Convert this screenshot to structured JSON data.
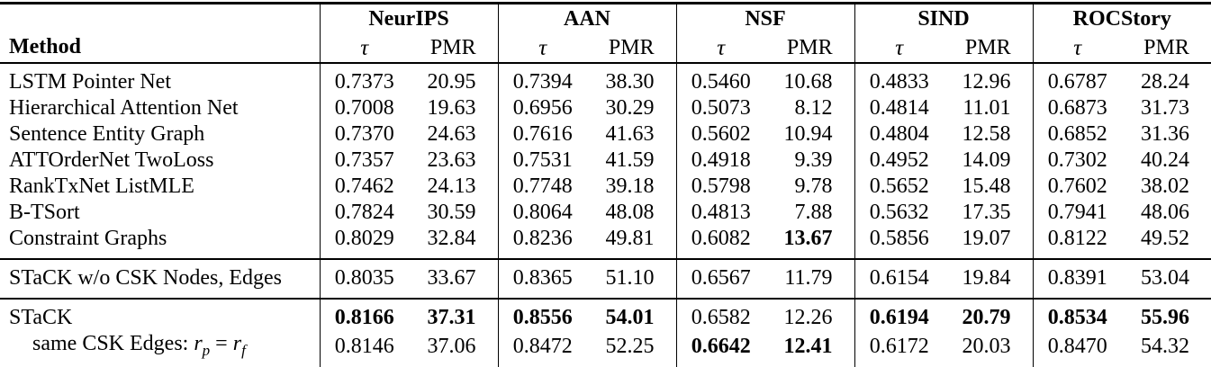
{
  "table": {
    "method_header": "Method",
    "datasets": [
      "NeurIPS",
      "AAN",
      "NSF",
      "SIND",
      "ROCStory"
    ],
    "subheaders": {
      "tau": "τ",
      "pmr": "PMR"
    },
    "sections": [
      {
        "name": "baselines",
        "rows": [
          {
            "method": "LSTM Pointer Net",
            "values": [
              "0.7373",
              "20.95",
              "0.7394",
              "38.30",
              "0.5460",
              "10.68",
              "0.4833",
              "12.96",
              "0.6787",
              "28.24"
            ],
            "bold": []
          },
          {
            "method": "Hierarchical Attention Net",
            "values": [
              "0.7008",
              "19.63",
              "0.6956",
              "30.29",
              "0.5073",
              "8.12",
              "0.4814",
              "11.01",
              "0.6873",
              "31.73"
            ],
            "bold": []
          },
          {
            "method": "Sentence Entity Graph",
            "values": [
              "0.7370",
              "24.63",
              "0.7616",
              "41.63",
              "0.5602",
              "10.94",
              "0.4804",
              "12.58",
              "0.6852",
              "31.36"
            ],
            "bold": []
          },
          {
            "method": "ATTOrderNet TwoLoss",
            "values": [
              "0.7357",
              "23.63",
              "0.7531",
              "41.59",
              "0.4918",
              "9.39",
              "0.4952",
              "14.09",
              "0.7302",
              "40.24"
            ],
            "bold": []
          },
          {
            "method": "RankTxNet ListMLE",
            "values": [
              "0.7462",
              "24.13",
              "0.7748",
              "39.18",
              "0.5798",
              "9.78",
              "0.5652",
              "15.48",
              "0.7602",
              "38.02"
            ],
            "bold": []
          },
          {
            "method": "B-TSort",
            "values": [
              "0.7824",
              "30.59",
              "0.8064",
              "48.08",
              "0.4813",
              "7.88",
              "0.5632",
              "17.35",
              "0.7941",
              "48.06"
            ],
            "bold": []
          },
          {
            "method": "Constraint Graphs",
            "values": [
              "0.8029",
              "32.84",
              "0.8236",
              "49.81",
              "0.6082",
              "13.67",
              "0.5856",
              "19.07",
              "0.8122",
              "49.52"
            ],
            "bold": [
              5
            ]
          }
        ]
      },
      {
        "name": "ablation",
        "rows": [
          {
            "method": "STaCK w/o CSK Nodes, Edges",
            "values": [
              "0.8035",
              "33.67",
              "0.8365",
              "51.10",
              "0.6567",
              "11.79",
              "0.6154",
              "19.84",
              "0.8391",
              "53.04"
            ],
            "bold": []
          }
        ]
      },
      {
        "name": "stack",
        "rows": [
          {
            "method": "STaCK",
            "values": [
              "0.8166",
              "37.31",
              "0.8556",
              "54.01",
              "0.6582",
              "12.26",
              "0.6194",
              "20.79",
              "0.8534",
              "55.96"
            ],
            "bold": [
              0,
              1,
              2,
              3,
              6,
              7,
              8,
              9
            ]
          },
          {
            "method": "same CSK Edges: r_p = r_f",
            "math": true,
            "indent": true,
            "values": [
              "0.8146",
              "37.06",
              "0.8472",
              "52.25",
              "0.6642",
              "12.41",
              "0.6172",
              "20.03",
              "0.8470",
              "54.32"
            ],
            "bold": [
              4,
              5
            ]
          }
        ]
      }
    ]
  }
}
